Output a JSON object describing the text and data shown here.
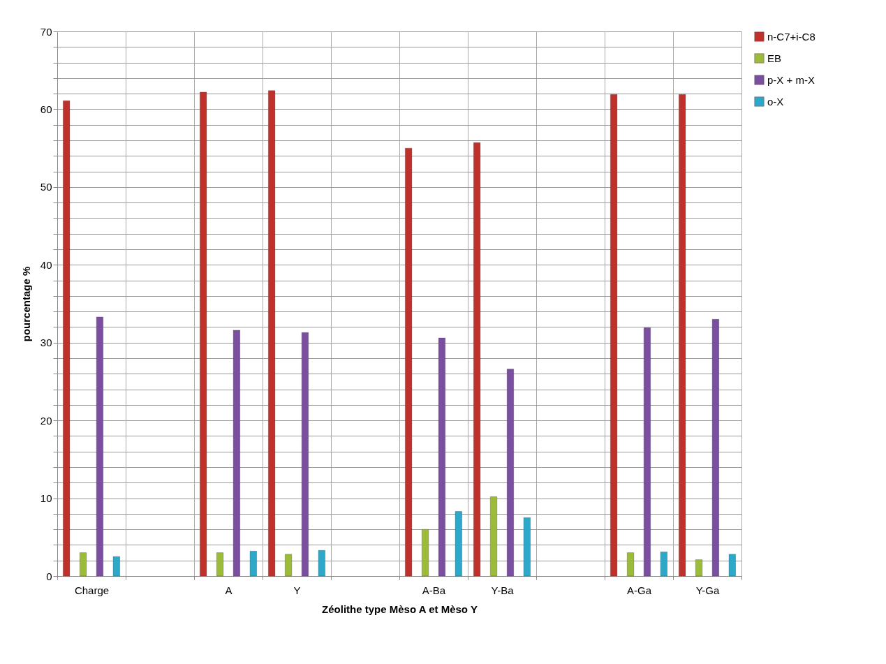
{
  "chart_data": {
    "type": "bar",
    "xlabel": "Zéolithe  type Mèso A et Mèso Y",
    "ylabel": "pourcentage %",
    "categories": [
      "Charge",
      null,
      "A",
      "Y",
      null,
      "A-Ba",
      "Y-Ba",
      null,
      "A-Ga",
      "Y-Ga"
    ],
    "series": [
      {
        "name": "n-C7+i-C8",
        "color": "#c0312b",
        "values": [
          61.1,
          null,
          62.2,
          62.4,
          null,
          55.0,
          55.7,
          null,
          61.9,
          61.9
        ]
      },
      {
        "name": "EB",
        "color": "#9bbb39",
        "values": [
          3.0,
          null,
          3.0,
          2.8,
          null,
          6.0,
          10.2,
          null,
          3.0,
          2.1
        ]
      },
      {
        "name": "p-X + m-X",
        "color": "#7b4fa0",
        "values": [
          33.3,
          null,
          31.6,
          31.3,
          null,
          30.6,
          26.6,
          null,
          31.9,
          33.0
        ]
      },
      {
        "name": "o-X",
        "color": "#2ea8c8",
        "values": [
          2.5,
          null,
          3.2,
          3.3,
          null,
          8.3,
          7.5,
          null,
          3.1,
          2.8
        ]
      }
    ],
    "ylim": [
      0,
      70
    ],
    "yticks": [
      0,
      {
        "value": 2,
        "label": null
      },
      {
        "value": 4,
        "label": null
      },
      {
        "value": 6,
        "label": null
      },
      {
        "value": 8,
        "label": null
      },
      10,
      {
        "value": 12,
        "label": null
      },
      {
        "value": 14,
        "label": null
      },
      {
        "value": 16,
        "label": null
      },
      {
        "value": 18,
        "label": null
      },
      20,
      {
        "value": 22,
        "label": null
      },
      {
        "value": 24,
        "label": null
      },
      {
        "value": 26,
        "label": null
      },
      {
        "value": 28,
        "label": null
      },
      30,
      {
        "value": 32,
        "label": null
      },
      {
        "value": 34,
        "label": null
      },
      {
        "value": 36,
        "label": null
      },
      {
        "value": 38,
        "label": null
      },
      40,
      {
        "value": 42,
        "label": null
      },
      {
        "value": 44,
        "label": null
      },
      {
        "value": 46,
        "label": null
      },
      {
        "value": 48,
        "label": null
      },
      50,
      {
        "value": 52,
        "label": null
      },
      {
        "value": 54,
        "label": null
      },
      {
        "value": 56,
        "label": null
      },
      {
        "value": 58,
        "label": null
      },
      60,
      {
        "value": 62,
        "label": null
      },
      {
        "value": 64,
        "label": null
      },
      {
        "value": 66,
        "label": null
      },
      {
        "value": 68,
        "label": null
      },
      70
    ],
    "grid": true,
    "legend": "right"
  }
}
